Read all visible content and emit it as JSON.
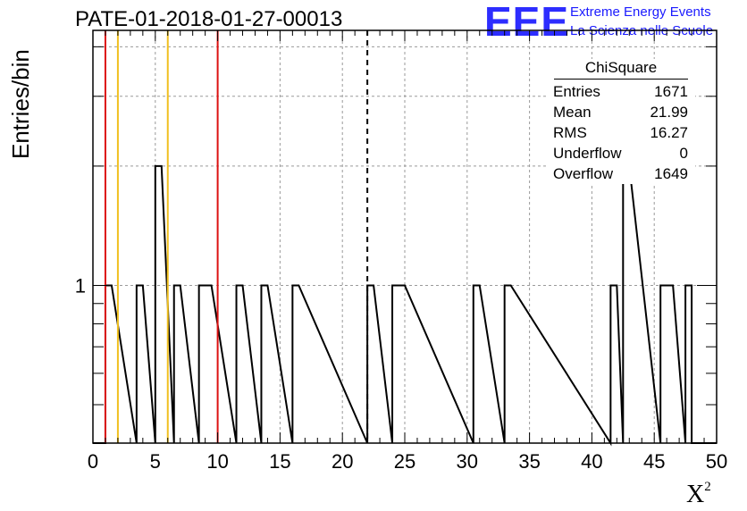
{
  "title": "PATE-01-2018-01-27-00013",
  "logo": {
    "mark": "EEE",
    "line1": "Extreme Energy Events",
    "line2": "La Scienza nelle Scuole"
  },
  "stats_box": {
    "title": "ChiSquare",
    "rows": [
      {
        "label": "Entries",
        "value": "1671"
      },
      {
        "label": "Mean",
        "value": "21.99"
      },
      {
        "label": "RMS",
        "value": "16.27"
      },
      {
        "label": "Underflow",
        "value": "0"
      },
      {
        "label": "Overflow",
        "value": "1649"
      }
    ]
  },
  "chart_data": {
    "type": "bar",
    "histogram": true,
    "title": "PATE-01-2018-01-27-00013",
    "xlabel": "X",
    "xlabel_superscript": "2",
    "ylabel": "Entries/bin",
    "xlim": [
      0,
      50
    ],
    "ylim_log": [
      0.4,
      4.4
    ],
    "yscale": "log",
    "grid": true,
    "bin_width": 0.5,
    "xticks": [
      0,
      5,
      10,
      15,
      20,
      25,
      30,
      35,
      40,
      45,
      50
    ],
    "yticks_labeled": [
      1
    ],
    "bins": [
      {
        "x": 1.0,
        "value": 1
      },
      {
        "x": 3.5,
        "value": 1
      },
      {
        "x": 5.0,
        "value": 2
      },
      {
        "x": 6.5,
        "value": 1
      },
      {
        "x": 8.5,
        "value": 1
      },
      {
        "x": 9.0,
        "value": 1
      },
      {
        "x": 11.5,
        "value": 1
      },
      {
        "x": 13.5,
        "value": 1
      },
      {
        "x": 16.0,
        "value": 1
      },
      {
        "x": 22.0,
        "value": 1
      },
      {
        "x": 24.0,
        "value": 1
      },
      {
        "x": 24.5,
        "value": 1
      },
      {
        "x": 30.5,
        "value": 1
      },
      {
        "x": 33.0,
        "value": 1
      },
      {
        "x": 41.5,
        "value": 1
      },
      {
        "x": 42.5,
        "value": 2
      },
      {
        "x": 45.5,
        "value": 1
      },
      {
        "x": 46.0,
        "value": 1
      },
      {
        "x": 47.5,
        "value": 1
      }
    ],
    "reference_lines": [
      {
        "x": 1.0,
        "color": "#dd1111",
        "style": "solid"
      },
      {
        "x": 2.0,
        "color": "#f0c020",
        "style": "solid"
      },
      {
        "x": 6.0,
        "color": "#f0c020",
        "style": "solid"
      },
      {
        "x": 10.0,
        "color": "#dd1111",
        "style": "solid"
      },
      {
        "x": 22.0,
        "color": "#000000",
        "style": "dashed"
      }
    ]
  }
}
